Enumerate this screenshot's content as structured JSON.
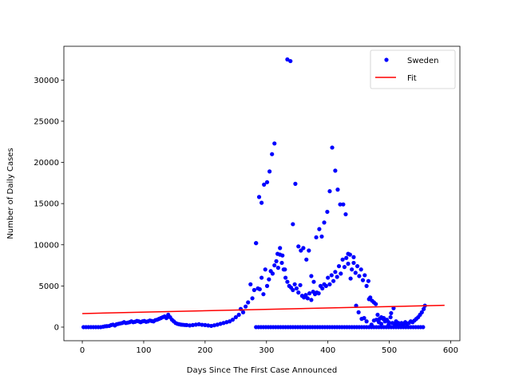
{
  "chart_data": {
    "type": "scatter",
    "xlabel": "Days Since The First Case Announced",
    "ylabel": "Number of Daily Cases",
    "xlim": [
      -30,
      615
    ],
    "ylim": [
      -1650,
      34100
    ],
    "xticks": [
      0,
      100,
      200,
      300,
      400,
      500,
      600
    ],
    "yticks": [
      0,
      5000,
      10000,
      15000,
      20000,
      25000,
      30000
    ],
    "legend_position": "top-right",
    "grid": false,
    "series": [
      {
        "name": "Sweden",
        "kind": "markers",
        "color": "#0000ff",
        "points": [
          [
            2,
            0
          ],
          [
            6,
            0
          ],
          [
            10,
            0
          ],
          [
            14,
            0
          ],
          [
            18,
            0
          ],
          [
            22,
            0
          ],
          [
            26,
            0
          ],
          [
            30,
            0
          ],
          [
            34,
            50
          ],
          [
            37,
            100
          ],
          [
            40,
            120
          ],
          [
            44,
            150
          ],
          [
            47,
            250
          ],
          [
            50,
            300
          ],
          [
            53,
            200
          ],
          [
            56,
            350
          ],
          [
            59,
            400
          ],
          [
            62,
            450
          ],
          [
            65,
            500
          ],
          [
            68,
            600
          ],
          [
            71,
            500
          ],
          [
            74,
            550
          ],
          [
            77,
            600
          ],
          [
            80,
            700
          ],
          [
            83,
            600
          ],
          [
            86,
            650
          ],
          [
            89,
            750
          ],
          [
            92,
            700
          ],
          [
            95,
            600
          ],
          [
            98,
            700
          ],
          [
            101,
            750
          ],
          [
            104,
            650
          ],
          [
            107,
            700
          ],
          [
            110,
            800
          ],
          [
            113,
            750
          ],
          [
            116,
            700
          ],
          [
            119,
            850
          ],
          [
            122,
            900
          ],
          [
            125,
            1000
          ],
          [
            128,
            1100
          ],
          [
            131,
            1200
          ],
          [
            134,
            1300
          ],
          [
            137,
            1100
          ],
          [
            140,
            1500
          ],
          [
            143,
            1200
          ],
          [
            146,
            900
          ],
          [
            149,
            700
          ],
          [
            152,
            500
          ],
          [
            155,
            400
          ],
          [
            158,
            350
          ],
          [
            161,
            300
          ],
          [
            164,
            280
          ],
          [
            167,
            260
          ],
          [
            170,
            250
          ],
          [
            175,
            200
          ],
          [
            180,
            250
          ],
          [
            185,
            300
          ],
          [
            190,
            350
          ],
          [
            195,
            280
          ],
          [
            200,
            250
          ],
          [
            205,
            200
          ],
          [
            210,
            150
          ],
          [
            215,
            220
          ],
          [
            220,
            300
          ],
          [
            225,
            400
          ],
          [
            230,
            500
          ],
          [
            235,
            600
          ],
          [
            240,
            700
          ],
          [
            245,
            900
          ],
          [
            250,
            1200
          ],
          [
            255,
            1500
          ],
          [
            258,
            2200
          ],
          [
            262,
            1800
          ],
          [
            266,
            2500
          ],
          [
            270,
            3000
          ],
          [
            274,
            5200
          ],
          [
            277,
            3500
          ],
          [
            280,
            4500
          ],
          [
            283,
            10200
          ],
          [
            286,
            4700
          ],
          [
            289,
            4600
          ],
          [
            292,
            6000
          ],
          [
            295,
            4000
          ],
          [
            298,
            7000
          ],
          [
            301,
            5000
          ],
          [
            304,
            5800
          ],
          [
            307,
            6800
          ],
          [
            310,
            6500
          ],
          [
            313,
            7500
          ],
          [
            316,
            8000
          ],
          [
            319,
            7200
          ],
          [
            322,
            8800
          ],
          [
            325,
            7800
          ],
          [
            328,
            7000
          ],
          [
            331,
            6000
          ],
          [
            334,
            5500
          ],
          [
            337,
            5000
          ],
          [
            340,
            4800
          ],
          [
            343,
            4500
          ],
          [
            346,
            5200
          ],
          [
            349,
            4700
          ],
          [
            352,
            4200
          ],
          [
            355,
            5100
          ],
          [
            358,
            3800
          ],
          [
            361,
            3600
          ],
          [
            364,
            3900
          ],
          [
            367,
            3500
          ],
          [
            370,
            4100
          ],
          [
            373,
            3300
          ],
          [
            376,
            4300
          ],
          [
            379,
            4000
          ],
          [
            382,
            4200
          ],
          [
            385,
            4100
          ],
          [
            388,
            5000
          ],
          [
            391,
            4700
          ],
          [
            394,
            5200
          ],
          [
            397,
            5000
          ],
          [
            400,
            6000
          ],
          [
            403,
            5200
          ],
          [
            406,
            6300
          ],
          [
            409,
            5600
          ],
          [
            412,
            6700
          ],
          [
            415,
            6100
          ],
          [
            418,
            7400
          ],
          [
            421,
            6500
          ],
          [
            424,
            8200
          ],
          [
            427,
            7300
          ],
          [
            430,
            8400
          ],
          [
            433,
            7700
          ],
          [
            436,
            8800
          ],
          [
            439,
            7000
          ],
          [
            442,
            7800
          ],
          [
            445,
            6600
          ],
          [
            448,
            7400
          ],
          [
            451,
            6200
          ],
          [
            454,
            7000
          ],
          [
            457,
            5700
          ],
          [
            460,
            6300
          ],
          [
            463,
            5000
          ],
          [
            466,
            5600
          ],
          [
            469,
            3600
          ],
          [
            472,
            3200
          ],
          [
            475,
            3000
          ],
          [
            478,
            2800
          ],
          [
            481,
            1500
          ],
          [
            484,
            1000
          ],
          [
            487,
            1200
          ],
          [
            490,
            1000
          ],
          [
            493,
            700
          ],
          [
            496,
            900
          ],
          [
            499,
            600
          ],
          [
            502,
            1200
          ],
          [
            505,
            500
          ],
          [
            508,
            400
          ],
          [
            511,
            300
          ],
          [
            514,
            500
          ],
          [
            517,
            400
          ],
          [
            520,
            500
          ],
          [
            523,
            300
          ],
          [
            526,
            600
          ],
          [
            529,
            400
          ],
          [
            532,
            500
          ],
          [
            535,
            700
          ],
          [
            538,
            600
          ],
          [
            541,
            800
          ],
          [
            544,
            1000
          ],
          [
            547,
            1200
          ],
          [
            550,
            1500
          ],
          [
            553,
            1800
          ],
          [
            556,
            2200
          ],
          [
            558,
            2600
          ],
          [
            283,
            0
          ],
          [
            287,
            0
          ],
          [
            291,
            0
          ],
          [
            295,
            0
          ],
          [
            299,
            0
          ],
          [
            303,
            0
          ],
          [
            307,
            0
          ],
          [
            311,
            0
          ],
          [
            315,
            0
          ],
          [
            319,
            0
          ],
          [
            323,
            0
          ],
          [
            327,
            0
          ],
          [
            331,
            0
          ],
          [
            335,
            0
          ],
          [
            339,
            0
          ],
          [
            343,
            0
          ],
          [
            347,
            0
          ],
          [
            351,
            0
          ],
          [
            355,
            0
          ],
          [
            359,
            0
          ],
          [
            363,
            0
          ],
          [
            367,
            0
          ],
          [
            371,
            0
          ],
          [
            375,
            0
          ],
          [
            379,
            0
          ],
          [
            383,
            0
          ],
          [
            387,
            0
          ],
          [
            391,
            0
          ],
          [
            395,
            0
          ],
          [
            399,
            0
          ],
          [
            403,
            0
          ],
          [
            407,
            0
          ],
          [
            411,
            0
          ],
          [
            415,
            0
          ],
          [
            419,
            0
          ],
          [
            423,
            0
          ],
          [
            427,
            0
          ],
          [
            431,
            0
          ],
          [
            435,
            0
          ],
          [
            439,
            0
          ],
          [
            443,
            0
          ],
          [
            447,
            0
          ],
          [
            451,
            0
          ],
          [
            455,
            0
          ],
          [
            459,
            0
          ],
          [
            463,
            0
          ],
          [
            467,
            0
          ],
          [
            471,
            0
          ],
          [
            475,
            0
          ],
          [
            479,
            0
          ],
          [
            483,
            0
          ],
          [
            487,
            0
          ],
          [
            491,
            0
          ],
          [
            495,
            0
          ],
          [
            499,
            0
          ],
          [
            503,
            0
          ],
          [
            507,
            0
          ],
          [
            511,
            0
          ],
          [
            515,
            0
          ],
          [
            519,
            0
          ],
          [
            523,
            0
          ],
          [
            527,
            0
          ],
          [
            531,
            0
          ],
          [
            535,
            0
          ],
          [
            539,
            0
          ],
          [
            543,
            0
          ],
          [
            547,
            0
          ],
          [
            551,
            0
          ],
          [
            555,
            0
          ],
          [
            283,
            10200
          ],
          [
            288,
            15800
          ],
          [
            292,
            15100
          ],
          [
            296,
            17300
          ],
          [
            301,
            17600
          ],
          [
            305,
            18900
          ],
          [
            309,
            21000
          ],
          [
            313,
            22300
          ],
          [
            318,
            8900
          ],
          [
            322,
            9600
          ],
          [
            326,
            8700
          ],
          [
            330,
            7000
          ],
          [
            334,
            32500
          ],
          [
            339,
            32300
          ],
          [
            343,
            12500
          ],
          [
            347,
            17400
          ],
          [
            352,
            9800
          ],
          [
            356,
            9300
          ],
          [
            360,
            9600
          ],
          [
            365,
            8200
          ],
          [
            369,
            9300
          ],
          [
            373,
            6200
          ],
          [
            377,
            5500
          ],
          [
            381,
            10900
          ],
          [
            386,
            11900
          ],
          [
            390,
            11000
          ],
          [
            394,
            12700
          ],
          [
            399,
            14000
          ],
          [
            403,
            16500
          ],
          [
            407,
            21800
          ],
          [
            412,
            19000
          ],
          [
            416,
            16700
          ],
          [
            420,
            14900
          ],
          [
            425,
            14900
          ],
          [
            429,
            13700
          ],
          [
            433,
            8900
          ],
          [
            437,
            5900
          ],
          [
            442,
            8500
          ],
          [
            446,
            2600
          ],
          [
            450,
            1800
          ],
          [
            455,
            1000
          ],
          [
            459,
            1100
          ],
          [
            463,
            700
          ],
          [
            467,
            3400
          ],
          [
            471,
            300
          ],
          [
            475,
            800
          ],
          [
            479,
            900
          ],
          [
            483,
            600
          ],
          [
            487,
            400
          ],
          [
            491,
            1100
          ],
          [
            495,
            800
          ],
          [
            499,
            300
          ],
          [
            503,
            1700
          ],
          [
            507,
            2300
          ],
          [
            511,
            700
          ],
          [
            515,
            500
          ]
        ]
      },
      {
        "name": "Fit",
        "kind": "line",
        "color": "#ff0000",
        "x": [
          0,
          590
        ],
        "y": [
          1650,
          2650
        ]
      }
    ]
  }
}
